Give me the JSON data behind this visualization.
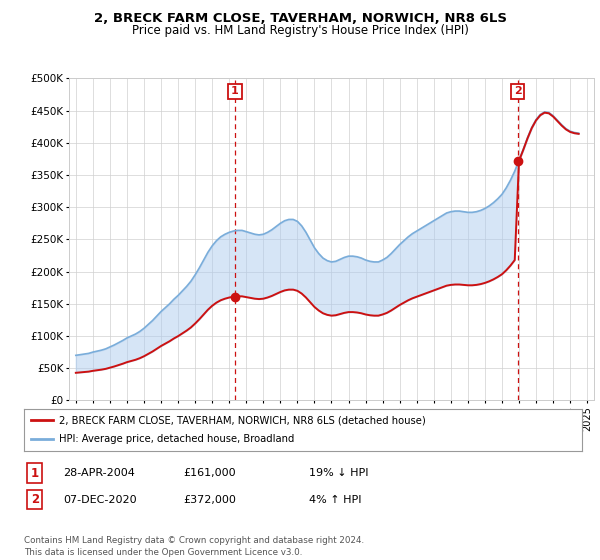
{
  "title": "2, BRECK FARM CLOSE, TAVERHAM, NORWICH, NR8 6LS",
  "subtitle": "Price paid vs. HM Land Registry's House Price Index (HPI)",
  "ylim": [
    0,
    500000
  ],
  "yticks": [
    0,
    50000,
    100000,
    150000,
    200000,
    250000,
    300000,
    350000,
    400000,
    450000,
    500000
  ],
  "ytick_labels": [
    "£0",
    "£50K",
    "£100K",
    "£150K",
    "£200K",
    "£250K",
    "£300K",
    "£350K",
    "£400K",
    "£450K",
    "£500K"
  ],
  "xlim_min": 1994.6,
  "xlim_max": 2025.4,
  "sale1_date": 2004.33,
  "sale1_price": 161000,
  "sale1_label": "1",
  "sale2_date": 2020.92,
  "sale2_price": 372000,
  "sale2_label": "2",
  "hpi_color": "#7aadda",
  "hpi_fill_color": "#aeccee",
  "price_color": "#cc1111",
  "annotation_box_color": "#cc1111",
  "legend_label_red": "2, BRECK FARM CLOSE, TAVERHAM, NORWICH, NR8 6LS (detached house)",
  "legend_label_blue": "HPI: Average price, detached house, Broadland",
  "table_row1": [
    "1",
    "28-APR-2004",
    "£161,000",
    "19% ↓ HPI"
  ],
  "table_row2": [
    "2",
    "07-DEC-2020",
    "£372,000",
    "4% ↑ HPI"
  ],
  "footer": "Contains HM Land Registry data © Crown copyright and database right 2024.\nThis data is licensed under the Open Government Licence v3.0.",
  "background_color": "#ffffff",
  "hpi_data_years": [
    1995,
    1995.25,
    1995.5,
    1995.75,
    1996,
    1996.25,
    1996.5,
    1996.75,
    1997,
    1997.25,
    1997.5,
    1997.75,
    1998,
    1998.25,
    1998.5,
    1998.75,
    1999,
    1999.25,
    1999.5,
    1999.75,
    2000,
    2000.25,
    2000.5,
    2000.75,
    2001,
    2001.25,
    2001.5,
    2001.75,
    2002,
    2002.25,
    2002.5,
    2002.75,
    2003,
    2003.25,
    2003.5,
    2003.75,
    2004,
    2004.25,
    2004.5,
    2004.75,
    2005,
    2005.25,
    2005.5,
    2005.75,
    2006,
    2006.25,
    2006.5,
    2006.75,
    2007,
    2007.25,
    2007.5,
    2007.75,
    2008,
    2008.25,
    2008.5,
    2008.75,
    2009,
    2009.25,
    2009.5,
    2009.75,
    2010,
    2010.25,
    2010.5,
    2010.75,
    2011,
    2011.25,
    2011.5,
    2011.75,
    2012,
    2012.25,
    2012.5,
    2012.75,
    2013,
    2013.25,
    2013.5,
    2013.75,
    2014,
    2014.25,
    2014.5,
    2014.75,
    2015,
    2015.25,
    2015.5,
    2015.75,
    2016,
    2016.25,
    2016.5,
    2016.75,
    2017,
    2017.25,
    2017.5,
    2017.75,
    2018,
    2018.25,
    2018.5,
    2018.75,
    2019,
    2019.25,
    2019.5,
    2019.75,
    2020,
    2020.25,
    2020.5,
    2020.75,
    2021,
    2021.25,
    2021.5,
    2021.75,
    2022,
    2022.25,
    2022.5,
    2022.75,
    2023,
    2023.25,
    2023.5,
    2023.75,
    2024,
    2024.25,
    2024.5
  ],
  "hpi_data_values": [
    70000,
    71000,
    72000,
    73000,
    75000,
    76500,
    78000,
    80000,
    83000,
    86000,
    89500,
    93000,
    97000,
    100000,
    103000,
    107000,
    112000,
    118000,
    124000,
    131000,
    138000,
    144000,
    150000,
    157000,
    163000,
    170000,
    177000,
    185000,
    195000,
    206000,
    218000,
    230000,
    240000,
    248000,
    254000,
    258000,
    261000,
    263000,
    264000,
    264000,
    262000,
    260000,
    258000,
    257000,
    258000,
    261000,
    265000,
    270000,
    275000,
    279000,
    281000,
    281000,
    278000,
    271000,
    261000,
    249000,
    237000,
    228000,
    221000,
    217000,
    215000,
    216000,
    219000,
    222000,
    224000,
    224000,
    223000,
    221000,
    218000,
    216000,
    215000,
    215000,
    218000,
    222000,
    228000,
    235000,
    242000,
    248000,
    254000,
    259000,
    263000,
    267000,
    271000,
    275000,
    279000,
    283000,
    287000,
    291000,
    293000,
    294000,
    294000,
    293000,
    292000,
    292000,
    293000,
    295000,
    298000,
    302000,
    307000,
    313000,
    320000,
    330000,
    342000,
    356000,
    373000,
    390000,
    408000,
    424000,
    436000,
    444000,
    448000,
    447000,
    442000,
    435000,
    428000,
    422000,
    418000,
    416000,
    415000
  ],
  "title_fontsize": 9.5,
  "subtitle_fontsize": 8.5
}
